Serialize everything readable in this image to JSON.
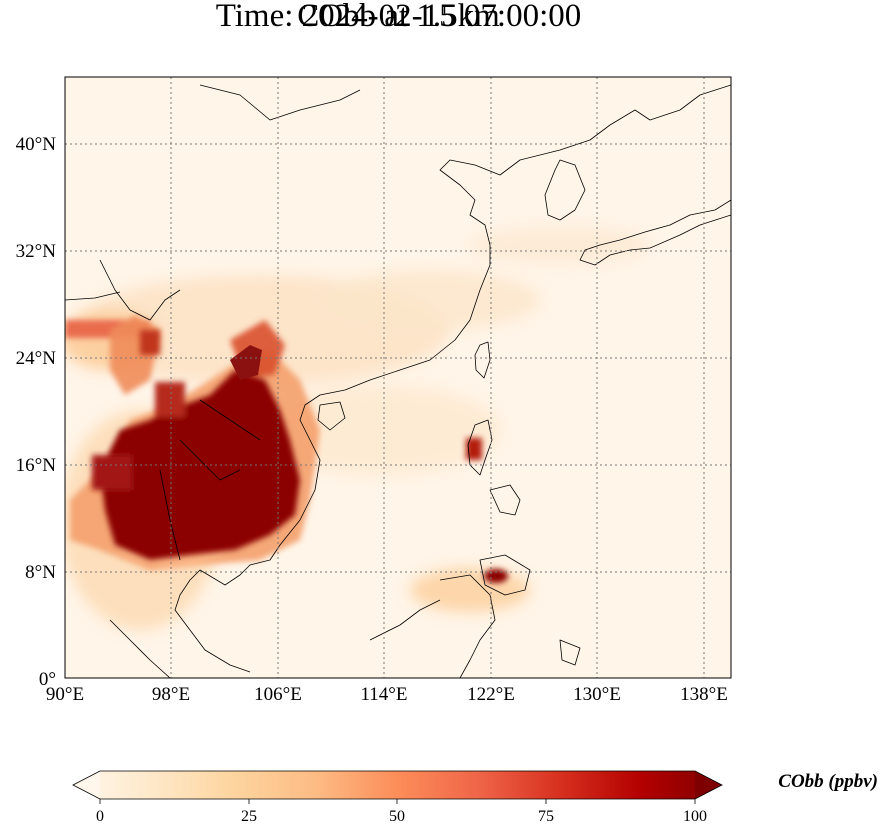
{
  "figure": {
    "title_line1": "CObb at 1.5km",
    "title_line2": "Time: 2024-02-15 07:00:00"
  },
  "map": {
    "variable": "CObb",
    "level": "1.5km",
    "lon_range": [
      90,
      140
    ],
    "lat_range": [
      0,
      44
    ],
    "lon_ticks": [
      "90°E",
      "98°E",
      "106°E",
      "114°E",
      "122°E",
      "130°E",
      "138°E"
    ],
    "lat_ticks": [
      "0°",
      "8°N",
      "16°N",
      "24°N",
      "32°N",
      "40°N"
    ],
    "gridlines": "dotted",
    "hotspots_desc": [
      "Indochina Peninsula",
      "Myanmar",
      "Luzon",
      "Mindanao"
    ]
  },
  "colorbar": {
    "label": "CObb (ppbv)",
    "ticks": [
      "0",
      "25",
      "50",
      "75",
      "100"
    ],
    "min": 0,
    "max": 100,
    "extend": "both",
    "colormap": "OrRd",
    "colors": [
      "#fff7ec",
      "#fee8c8",
      "#fdd49e",
      "#fdbb84",
      "#fc8d59",
      "#ef6548",
      "#d7301f",
      "#b30000",
      "#7f0000"
    ]
  }
}
